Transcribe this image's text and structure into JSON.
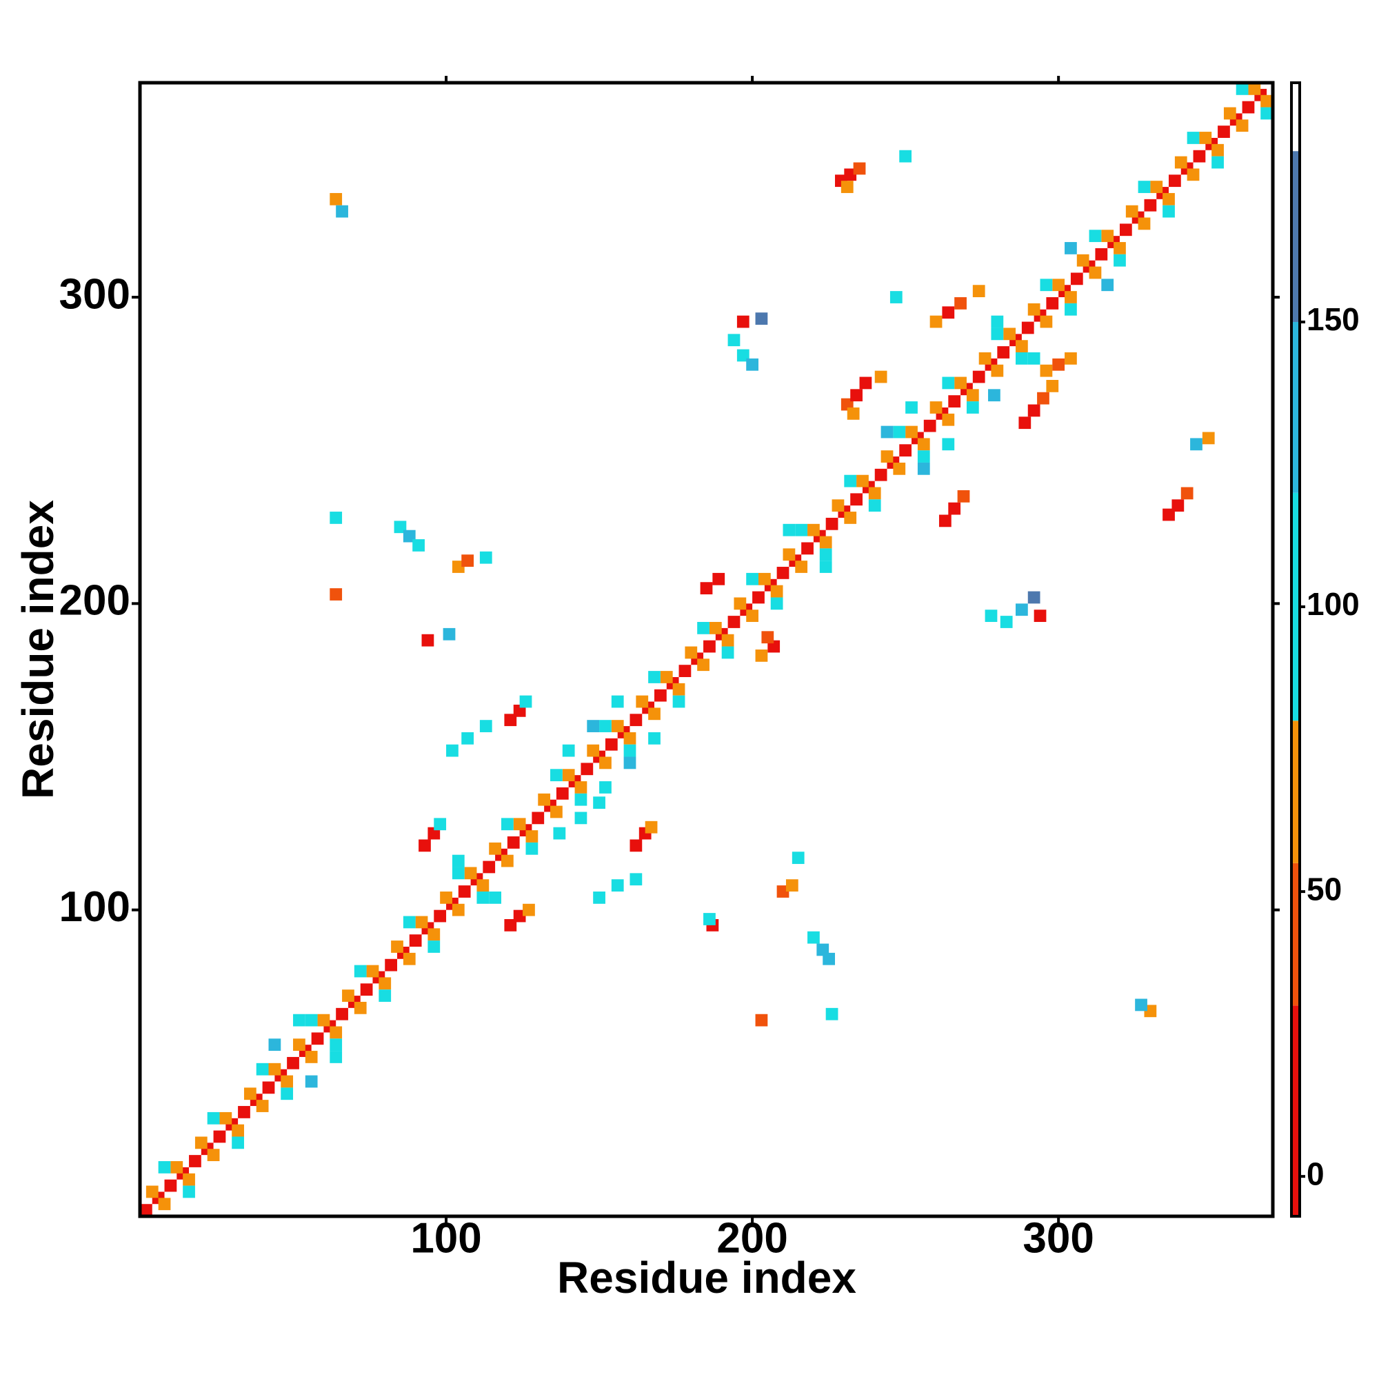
{
  "chart_data": {
    "type": "heatmap",
    "x_label": "Residue index",
    "y_label": "Residue index",
    "xlim": [
      0,
      370
    ],
    "ylim": [
      0,
      370
    ],
    "xticks": [
      100,
      200,
      300
    ],
    "yticks": [
      100,
      200,
      300
    ],
    "colorbar": {
      "bounds": [
        -7,
        30,
        55,
        80,
        120,
        150,
        180,
        192
      ],
      "colors": [
        "#e8100c",
        "#f0520c",
        "#f5920a",
        "#18dde2",
        "#2cb6dc",
        "#4d78ae",
        "#ffffff"
      ],
      "ticks": [
        0,
        50,
        100,
        150
      ]
    },
    "cells": [
      [
        2,
        2,
        10
      ],
      [
        6,
        6,
        10
      ],
      [
        10,
        10,
        10
      ],
      [
        14,
        14,
        10
      ],
      [
        18,
        18,
        10
      ],
      [
        22,
        22,
        10
      ],
      [
        26,
        26,
        10
      ],
      [
        30,
        30,
        10
      ],
      [
        34,
        34,
        10
      ],
      [
        38,
        38,
        10
      ],
      [
        42,
        42,
        10
      ],
      [
        46,
        46,
        10
      ],
      [
        50,
        50,
        10
      ],
      [
        54,
        54,
        10
      ],
      [
        58,
        58,
        10
      ],
      [
        62,
        62,
        10
      ],
      [
        66,
        66,
        10
      ],
      [
        70,
        70,
        10
      ],
      [
        74,
        74,
        10
      ],
      [
        78,
        78,
        10
      ],
      [
        82,
        82,
        10
      ],
      [
        86,
        86,
        10
      ],
      [
        90,
        90,
        10
      ],
      [
        94,
        94,
        10
      ],
      [
        98,
        98,
        10
      ],
      [
        102,
        102,
        10
      ],
      [
        106,
        106,
        10
      ],
      [
        110,
        110,
        10
      ],
      [
        114,
        114,
        10
      ],
      [
        118,
        118,
        10
      ],
      [
        122,
        122,
        10
      ],
      [
        126,
        126,
        10
      ],
      [
        130,
        130,
        10
      ],
      [
        134,
        134,
        10
      ],
      [
        138,
        138,
        10
      ],
      [
        142,
        142,
        10
      ],
      [
        146,
        146,
        10
      ],
      [
        150,
        150,
        10
      ],
      [
        154,
        154,
        10
      ],
      [
        158,
        158,
        10
      ],
      [
        162,
        162,
        10
      ],
      [
        166,
        166,
        10
      ],
      [
        170,
        170,
        10
      ],
      [
        174,
        174,
        10
      ],
      [
        178,
        178,
        10
      ],
      [
        182,
        182,
        10
      ],
      [
        186,
        186,
        10
      ],
      [
        190,
        190,
        10
      ],
      [
        194,
        194,
        10
      ],
      [
        198,
        198,
        10
      ],
      [
        202,
        202,
        10
      ],
      [
        206,
        206,
        10
      ],
      [
        210,
        210,
        10
      ],
      [
        214,
        214,
        10
      ],
      [
        218,
        218,
        10
      ],
      [
        222,
        222,
        10
      ],
      [
        226,
        226,
        10
      ],
      [
        230,
        230,
        10
      ],
      [
        234,
        234,
        10
      ],
      [
        238,
        238,
        10
      ],
      [
        242,
        242,
        10
      ],
      [
        246,
        246,
        10
      ],
      [
        250,
        250,
        10
      ],
      [
        254,
        254,
        10
      ],
      [
        258,
        258,
        10
      ],
      [
        262,
        262,
        10
      ],
      [
        266,
        266,
        10
      ],
      [
        270,
        270,
        10
      ],
      [
        274,
        274,
        10
      ],
      [
        278,
        278,
        10
      ],
      [
        282,
        282,
        10
      ],
      [
        286,
        286,
        10
      ],
      [
        290,
        290,
        10
      ],
      [
        294,
        294,
        10
      ],
      [
        298,
        298,
        10
      ],
      [
        302,
        302,
        10
      ],
      [
        306,
        306,
        10
      ],
      [
        310,
        310,
        10
      ],
      [
        314,
        314,
        10
      ],
      [
        318,
        318,
        10
      ],
      [
        322,
        322,
        10
      ],
      [
        326,
        326,
        10
      ],
      [
        330,
        330,
        10
      ],
      [
        334,
        334,
        10
      ],
      [
        338,
        338,
        10
      ],
      [
        342,
        342,
        10
      ],
      [
        346,
        346,
        10
      ],
      [
        350,
        350,
        10
      ],
      [
        354,
        354,
        10
      ],
      [
        358,
        358,
        10
      ],
      [
        362,
        362,
        10
      ],
      [
        366,
        366,
        10
      ],
      [
        4,
        8,
        65
      ],
      [
        12,
        16,
        65
      ],
      [
        20,
        24,
        65
      ],
      [
        28,
        32,
        65
      ],
      [
        36,
        40,
        65
      ],
      [
        44,
        48,
        65
      ],
      [
        52,
        56,
        65
      ],
      [
        60,
        64,
        65
      ],
      [
        68,
        72,
        65
      ],
      [
        76,
        80,
        65
      ],
      [
        84,
        88,
        65
      ],
      [
        92,
        96,
        65
      ],
      [
        100,
        104,
        65
      ],
      [
        108,
        112,
        65
      ],
      [
        116,
        120,
        65
      ],
      [
        124,
        128,
        65
      ],
      [
        132,
        136,
        65
      ],
      [
        140,
        144,
        65
      ],
      [
        148,
        152,
        65
      ],
      [
        156,
        160,
        65
      ],
      [
        164,
        168,
        65
      ],
      [
        172,
        176,
        65
      ],
      [
        180,
        184,
        65
      ],
      [
        188,
        192,
        65
      ],
      [
        196,
        200,
        65
      ],
      [
        204,
        208,
        65
      ],
      [
        212,
        216,
        65
      ],
      [
        220,
        224,
        65
      ],
      [
        228,
        232,
        65
      ],
      [
        236,
        240,
        65
      ],
      [
        244,
        248,
        65
      ],
      [
        252,
        256,
        65
      ],
      [
        260,
        264,
        65
      ],
      [
        268,
        272,
        65
      ],
      [
        276,
        280,
        65
      ],
      [
        284,
        288,
        65
      ],
      [
        292,
        296,
        65
      ],
      [
        300,
        304,
        65
      ],
      [
        308,
        312,
        65
      ],
      [
        316,
        320,
        65
      ],
      [
        324,
        328,
        65
      ],
      [
        332,
        336,
        65
      ],
      [
        340,
        344,
        65
      ],
      [
        348,
        352,
        65
      ],
      [
        356,
        360,
        65
      ],
      [
        364,
        368,
        65
      ],
      [
        8,
        4,
        65
      ],
      [
        16,
        12,
        65
      ],
      [
        24,
        20,
        65
      ],
      [
        32,
        28,
        65
      ],
      [
        40,
        36,
        65
      ],
      [
        48,
        44,
        65
      ],
      [
        56,
        52,
        65
      ],
      [
        64,
        60,
        65
      ],
      [
        72,
        68,
        65
      ],
      [
        80,
        76,
        65
      ],
      [
        88,
        84,
        65
      ],
      [
        96,
        92,
        65
      ],
      [
        104,
        100,
        65
      ],
      [
        112,
        108,
        65
      ],
      [
        120,
        116,
        65
      ],
      [
        128,
        124,
        65
      ],
      [
        136,
        132,
        65
      ],
      [
        144,
        140,
        65
      ],
      [
        152,
        148,
        65
      ],
      [
        160,
        156,
        65
      ],
      [
        168,
        164,
        65
      ],
      [
        176,
        172,
        65
      ],
      [
        184,
        180,
        65
      ],
      [
        192,
        188,
        65
      ],
      [
        200,
        196,
        65
      ],
      [
        208,
        204,
        65
      ],
      [
        216,
        212,
        65
      ],
      [
        224,
        220,
        65
      ],
      [
        232,
        228,
        65
      ],
      [
        240,
        236,
        65
      ],
      [
        248,
        244,
        65
      ],
      [
        256,
        252,
        65
      ],
      [
        264,
        260,
        65
      ],
      [
        272,
        268,
        65
      ],
      [
        280,
        276,
        65
      ],
      [
        288,
        284,
        65
      ],
      [
        296,
        292,
        65
      ],
      [
        304,
        300,
        65
      ],
      [
        312,
        308,
        65
      ],
      [
        320,
        316,
        65
      ],
      [
        328,
        324,
        65
      ],
      [
        336,
        332,
        65
      ],
      [
        344,
        340,
        65
      ],
      [
        352,
        348,
        65
      ],
      [
        360,
        356,
        65
      ],
      [
        368,
        364,
        65
      ],
      [
        8,
        16,
        100
      ],
      [
        24,
        32,
        100
      ],
      [
        40,
        48,
        100
      ],
      [
        56,
        64,
        100
      ],
      [
        72,
        80,
        100
      ],
      [
        88,
        96,
        100
      ],
      [
        104,
        112,
        100
      ],
      [
        120,
        128,
        100
      ],
      [
        136,
        144,
        100
      ],
      [
        152,
        160,
        100
      ],
      [
        168,
        176,
        100
      ],
      [
        184,
        192,
        100
      ],
      [
        200,
        208,
        100
      ],
      [
        216,
        224,
        100
      ],
      [
        232,
        240,
        100
      ],
      [
        248,
        256,
        100
      ],
      [
        264,
        272,
        100
      ],
      [
        280,
        288,
        100
      ],
      [
        296,
        304,
        100
      ],
      [
        312,
        320,
        100
      ],
      [
        328,
        336,
        100
      ],
      [
        344,
        352,
        100
      ],
      [
        360,
        368,
        100
      ],
      [
        16,
        8,
        100
      ],
      [
        32,
        24,
        100
      ],
      [
        48,
        40,
        100
      ],
      [
        64,
        56,
        100
      ],
      [
        80,
        72,
        100
      ],
      [
        96,
        88,
        100
      ],
      [
        112,
        104,
        100
      ],
      [
        128,
        120,
        100
      ],
      [
        144,
        136,
        100
      ],
      [
        160,
        152,
        100
      ],
      [
        176,
        168,
        100
      ],
      [
        192,
        184,
        100
      ],
      [
        208,
        200,
        100
      ],
      [
        224,
        216,
        100
      ],
      [
        240,
        232,
        100
      ],
      [
        256,
        248,
        100
      ],
      [
        272,
        264,
        100
      ],
      [
        288,
        280,
        100
      ],
      [
        304,
        296,
        100
      ],
      [
        320,
        312,
        100
      ],
      [
        336,
        328,
        100
      ],
      [
        352,
        344,
        100
      ],
      [
        368,
        360,
        100
      ],
      [
        44,
        56,
        135
      ],
      [
        52,
        64,
        100
      ],
      [
        104,
        116,
        100
      ],
      [
        140,
        152,
        100
      ],
      [
        148,
        160,
        135
      ],
      [
        156,
        168,
        100
      ],
      [
        212,
        224,
        100
      ],
      [
        244,
        256,
        135
      ],
      [
        252,
        264,
        100
      ],
      [
        280,
        292,
        100
      ],
      [
        304,
        316,
        135
      ],
      [
        56,
        44,
        135
      ],
      [
        64,
        52,
        100
      ],
      [
        116,
        104,
        100
      ],
      [
        152,
        140,
        100
      ],
      [
        160,
        148,
        135
      ],
      [
        168,
        156,
        100
      ],
      [
        224,
        212,
        100
      ],
      [
        256,
        244,
        135
      ],
      [
        264,
        252,
        100
      ],
      [
        292,
        280,
        100
      ],
      [
        316,
        304,
        135
      ],
      [
        229,
        338,
        10
      ],
      [
        232,
        340,
        10
      ],
      [
        235,
        342,
        40
      ],
      [
        231,
        336,
        65
      ],
      [
        336,
        229,
        10
      ],
      [
        339,
        232,
        10
      ],
      [
        342,
        236,
        40
      ],
      [
        231,
        265,
        40
      ],
      [
        234,
        268,
        10
      ],
      [
        237,
        272,
        10
      ],
      [
        233,
        262,
        65
      ],
      [
        289,
        259,
        10
      ],
      [
        292,
        263,
        10
      ],
      [
        295,
        267,
        40
      ],
      [
        298,
        271,
        65
      ],
      [
        263,
        227,
        10
      ],
      [
        266,
        231,
        10
      ],
      [
        269,
        235,
        40
      ],
      [
        260,
        292,
        65
      ],
      [
        264,
        295,
        10
      ],
      [
        268,
        298,
        40
      ],
      [
        274,
        302,
        65
      ],
      [
        296,
        276,
        65
      ],
      [
        300,
        278,
        40
      ],
      [
        304,
        280,
        65
      ],
      [
        194,
        286,
        100
      ],
      [
        197,
        281,
        100
      ],
      [
        200,
        278,
        135
      ],
      [
        197,
        292,
        10
      ],
      [
        203,
        293,
        160
      ],
      [
        278,
        196,
        100
      ],
      [
        283,
        194,
        100
      ],
      [
        288,
        198,
        135
      ],
      [
        294,
        196,
        10
      ],
      [
        292,
        202,
        160
      ],
      [
        185,
        205,
        10
      ],
      [
        189,
        208,
        10
      ],
      [
        207,
        186,
        10
      ],
      [
        205,
        189,
        40
      ],
      [
        203,
        183,
        65
      ],
      [
        121,
        162,
        10
      ],
      [
        124,
        165,
        10
      ],
      [
        126,
        168,
        100
      ],
      [
        162,
        121,
        10
      ],
      [
        165,
        125,
        10
      ],
      [
        167,
        127,
        65
      ],
      [
        93,
        121,
        10
      ],
      [
        96,
        125,
        10
      ],
      [
        98,
        128,
        100
      ],
      [
        121,
        95,
        10
      ],
      [
        124,
        98,
        10
      ],
      [
        127,
        100,
        65
      ],
      [
        94,
        188,
        10
      ],
      [
        101,
        190,
        135
      ],
      [
        187,
        95,
        10
      ],
      [
        186,
        97,
        100
      ],
      [
        85,
        225,
        100
      ],
      [
        88,
        222,
        135
      ],
      [
        91,
        219,
        100
      ],
      [
        220,
        91,
        100
      ],
      [
        223,
        87,
        135
      ],
      [
        225,
        84,
        135
      ],
      [
        104,
        212,
        65
      ],
      [
        107,
        214,
        40
      ],
      [
        113,
        215,
        100
      ],
      [
        210,
        106,
        40
      ],
      [
        213,
        108,
        65
      ],
      [
        215,
        117,
        100
      ],
      [
        64,
        332,
        65
      ],
      [
        66,
        328,
        135
      ],
      [
        64,
        228,
        100
      ],
      [
        64,
        203,
        40
      ],
      [
        330,
        67,
        65
      ],
      [
        327,
        69,
        135
      ],
      [
        226,
        66,
        100
      ],
      [
        203,
        64,
        40
      ],
      [
        102,
        152,
        100
      ],
      [
        107,
        156,
        100
      ],
      [
        113,
        160,
        100
      ],
      [
        150,
        104,
        100
      ],
      [
        156,
        108,
        100
      ],
      [
        162,
        110,
        100
      ],
      [
        345,
        252,
        135
      ],
      [
        349,
        254,
        65
      ],
      [
        250,
        346,
        100
      ],
      [
        137,
        125,
        100
      ],
      [
        144,
        130,
        100
      ],
      [
        150,
        135,
        100
      ],
      [
        247,
        300,
        100
      ],
      [
        242,
        274,
        65
      ],
      [
        279,
        268,
        135
      ]
    ]
  }
}
